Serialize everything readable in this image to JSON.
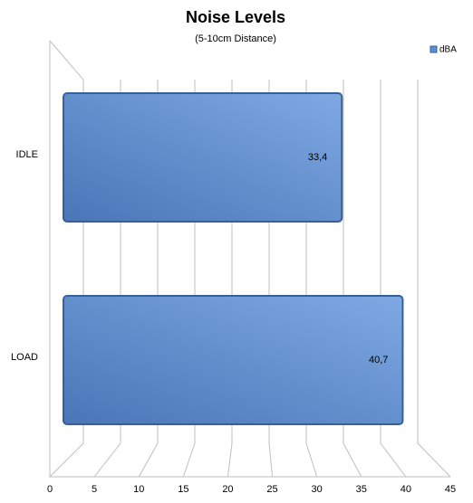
{
  "chart_data": {
    "type": "bar",
    "orientation": "horizontal",
    "title": "Noise Levels",
    "subtitle": "(5-10cm Distance)",
    "categories": [
      "IDLE",
      "LOAD"
    ],
    "series": [
      {
        "name": "dBA",
        "color": "#5b8fd4",
        "values": [
          33.4,
          40.7
        ],
        "value_labels": [
          "33,4",
          "40,7"
        ]
      }
    ],
    "xlim": [
      0,
      45
    ],
    "xticks": [
      0,
      5,
      10,
      15,
      20,
      25,
      30,
      35,
      40,
      45
    ],
    "grid": true,
    "legend": "top-right"
  }
}
